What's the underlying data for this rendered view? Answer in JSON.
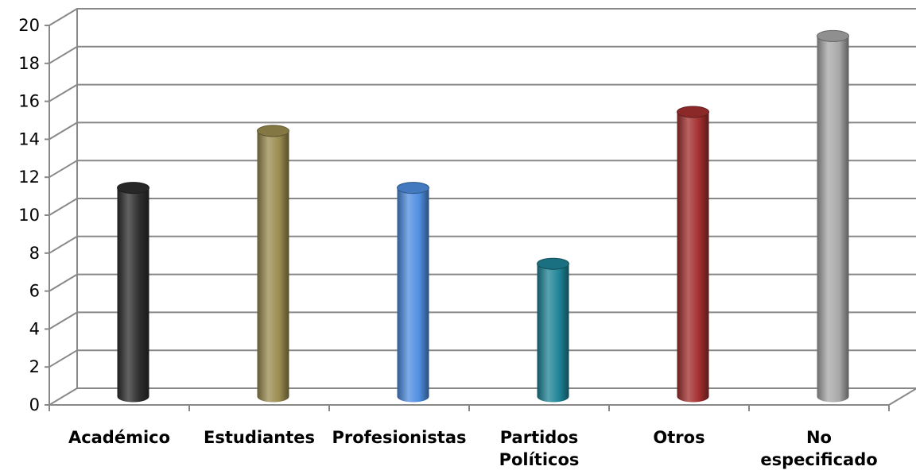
{
  "chart_data": {
    "type": "bar",
    "style": "3d-cylinder",
    "categories": [
      "Académico",
      "Estudiantes",
      "Profesionistas",
      "Partidos Políticos",
      "Otros",
      "No especificado"
    ],
    "category_lines": [
      [
        "Académico"
      ],
      [
        "Estudiantes"
      ],
      [
        "Profesionistas"
      ],
      [
        "Partidos",
        "Políticos"
      ],
      [
        "Otros"
      ],
      [
        "No",
        "especificado"
      ]
    ],
    "values": [
      11,
      14,
      11,
      7,
      15,
      19
    ],
    "colors": [
      "#2e2e2e",
      "#9a8c50",
      "#4f8ee0",
      "#1f8497",
      "#a32f2f",
      "#a8a8a8"
    ],
    "ylim": [
      0,
      20
    ],
    "yticks": [
      0,
      2,
      4,
      6,
      8,
      10,
      12,
      14,
      16,
      18,
      20
    ],
    "title": "",
    "xlabel": "",
    "ylabel": "",
    "grid": true,
    "legend": "none"
  }
}
